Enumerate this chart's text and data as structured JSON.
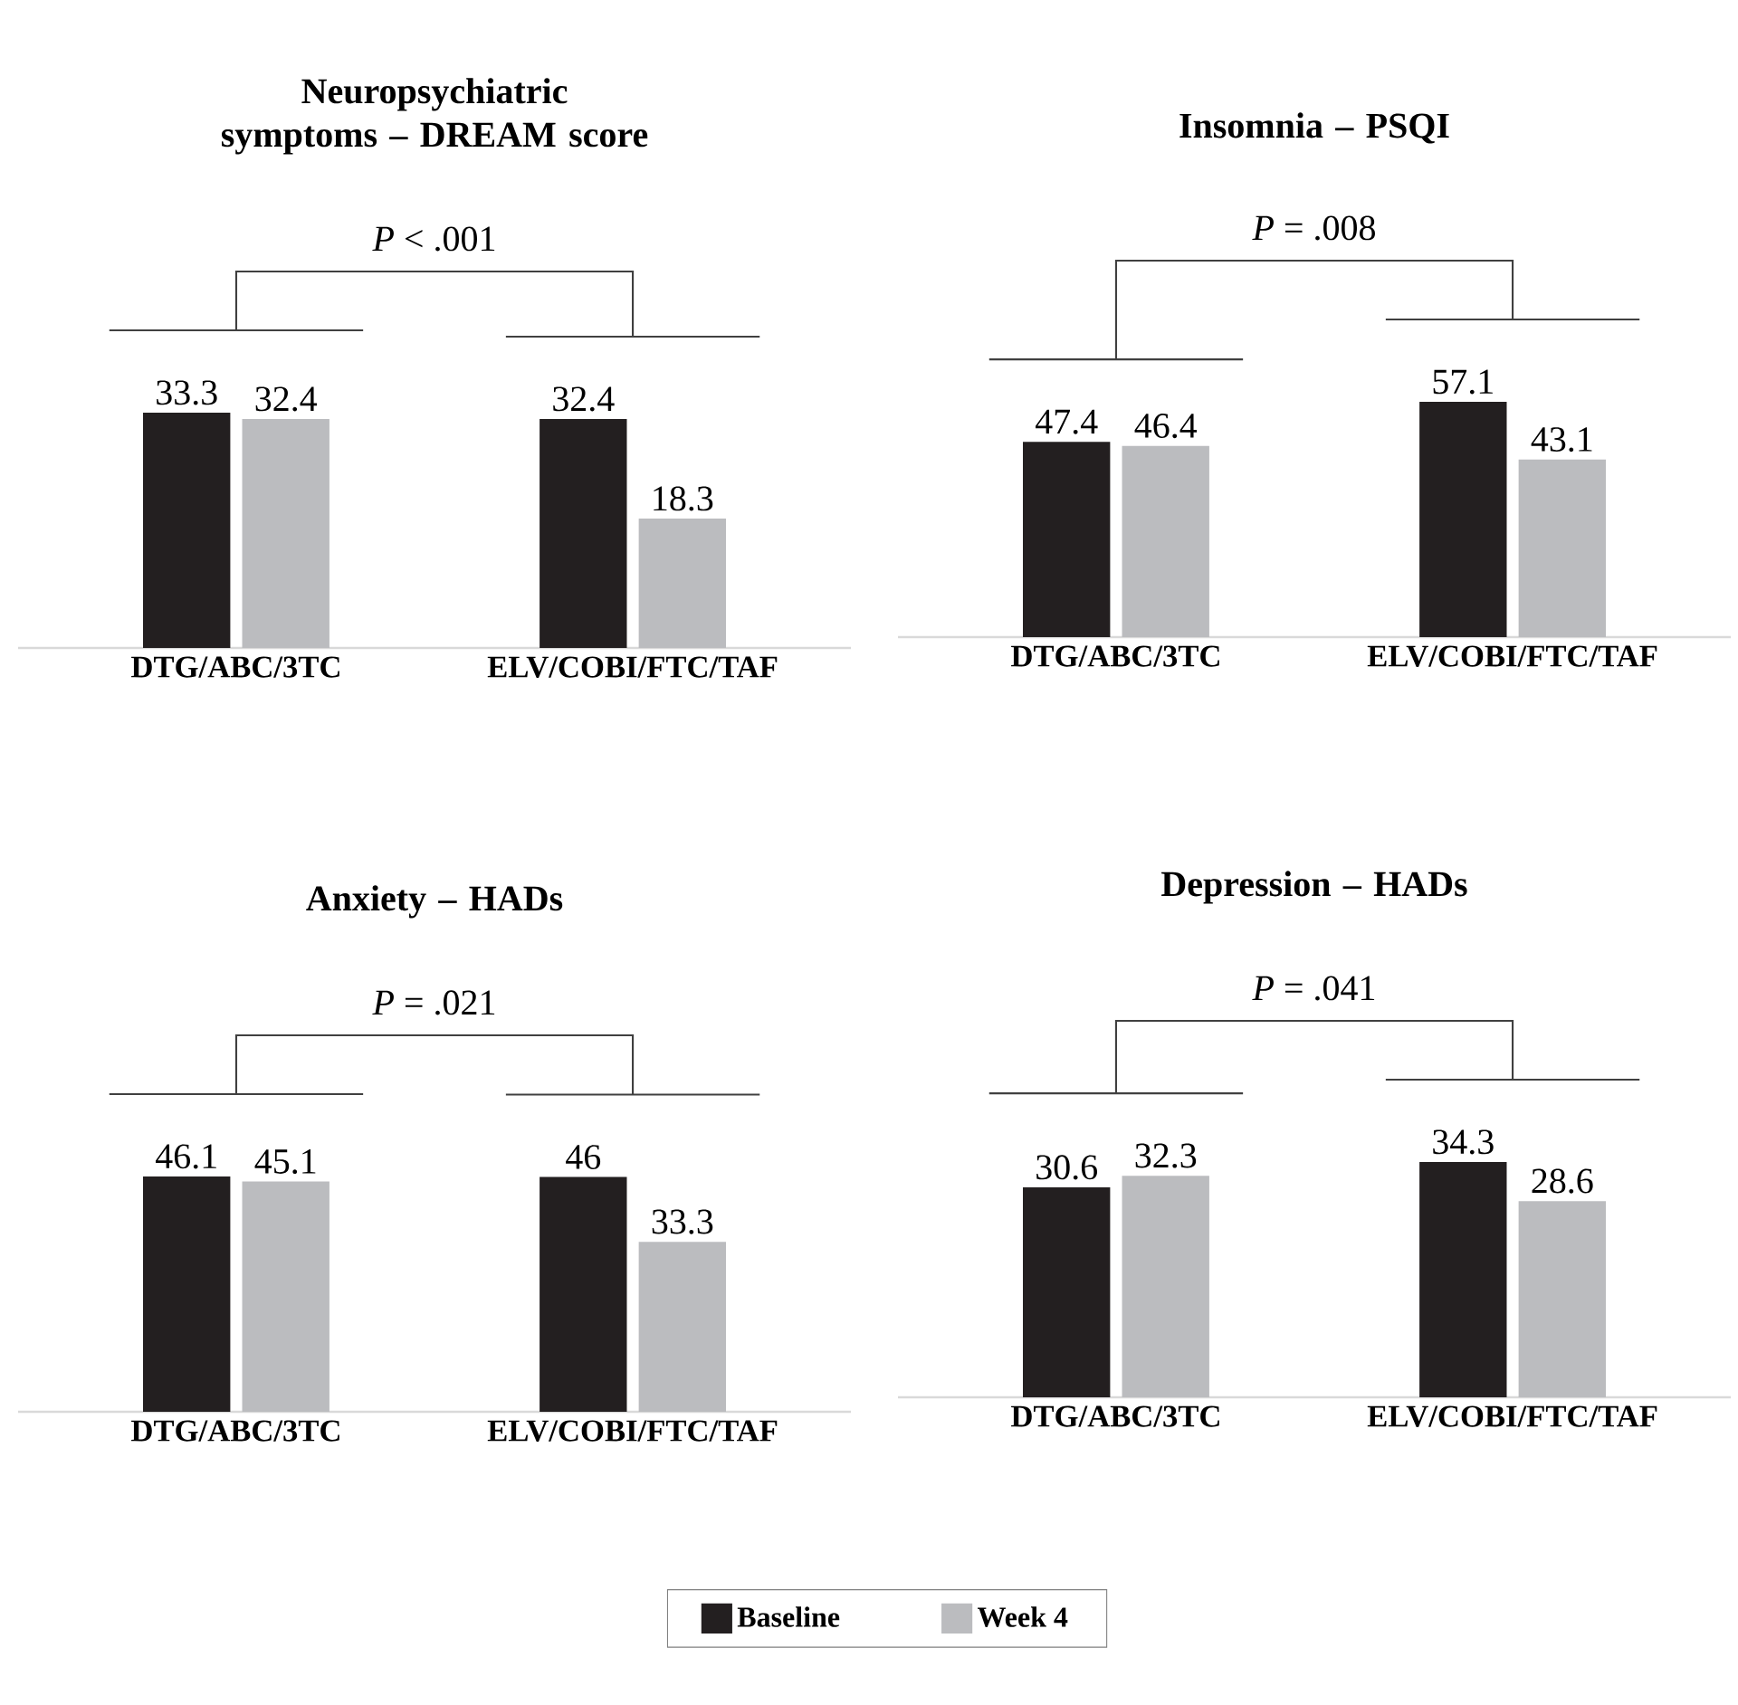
{
  "chart_data": [
    {
      "type": "bar",
      "title": "Neuropsychiatric symptoms – DREAM score",
      "annotations": [
        "*P* < .001"
      ],
      "categories": [
        "DTG/ABC/3TC",
        "ELV/COBI/FTC/TAF"
      ],
      "data_labels": true,
      "series": [
        {
          "color": "#231f20",
          "values": [
            33.3,
            32.4
          ]
        },
        {
          "color": "#bbbcbf",
          "values": [
            32.4,
            18.3
          ]
        }
      ]
    },
    {
      "type": "bar",
      "title": "Insomnia – PSQI",
      "annotations": [
        "*P* = .008"
      ],
      "categories": [
        "DTG/ABC/3TC",
        "ELV/COBI/FTC/TAF"
      ],
      "data_labels": true,
      "series": [
        {
          "color": "#231f20",
          "values": [
            47.4,
            57.1
          ]
        },
        {
          "color": "#bbbcbf",
          "values": [
            46.4,
            43.1
          ]
        }
      ]
    },
    {
      "type": "bar",
      "title": "Anxiety – HADs",
      "annotations": [
        "*P* = .021"
      ],
      "categories": [
        "DTG/ABC/3TC",
        "ELV/COBI/FTC/TAF"
      ],
      "data_labels": true,
      "series": [
        {
          "color": "#231f20",
          "values": [
            46.1,
            46
          ]
        },
        {
          "color": "#bbbcbf",
          "values": [
            45.1,
            33.3
          ]
        }
      ]
    },
    {
      "type": "bar",
      "title": "Depression – HADs",
      "annotations": [
        "*P* = .041"
      ],
      "categories": [
        "DTG/ABC/3TC",
        "ELV/COBI/FTC/TAF"
      ],
      "data_labels": true,
      "legend": "bottom",
      "series": [
        {
          "name": "Baseline",
          "color": "#231f20",
          "values": [
            30.6,
            34.3
          ]
        },
        {
          "name": "Week 4",
          "color": "#bbbcbf",
          "values": [
            32.3,
            28.6
          ]
        }
      ]
    }
  ]
}
